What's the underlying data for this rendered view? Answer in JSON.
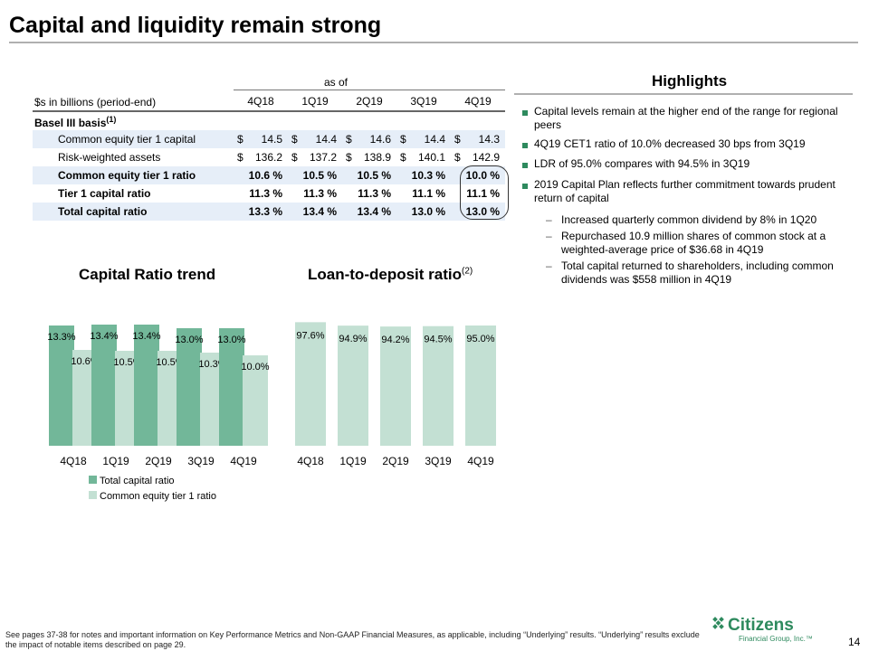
{
  "title": "Capital and liquidity remain strong",
  "table": {
    "as_of": "as of",
    "row_header": "$s in billions (period-end)",
    "columns": [
      "4Q18",
      "1Q19",
      "2Q19",
      "3Q19",
      "4Q19"
    ],
    "section": "Basel III basis",
    "section_sup": "(1)",
    "rows": [
      {
        "label": "Common equity tier 1 capital",
        "values": [
          "14.5",
          "14.4",
          "14.6",
          "14.4",
          "14.3"
        ],
        "dollar": true,
        "bold": false
      },
      {
        "label": "Risk-weighted assets",
        "values": [
          "136.2",
          "137.2",
          "138.9",
          "140.1",
          "142.9"
        ],
        "dollar": true,
        "bold": false
      },
      {
        "label": "Common equity tier 1 ratio",
        "values": [
          "10.6 %",
          "10.5 %",
          "10.5 %",
          "10.3 %",
          "10.0 %"
        ],
        "dollar": false,
        "bold": true
      },
      {
        "label": "Tier 1 capital ratio",
        "values": [
          "11.3 %",
          "11.3 %",
          "11.3 %",
          "11.1 %",
          "11.1 %"
        ],
        "dollar": false,
        "bold": true
      },
      {
        "label": "Total capital ratio",
        "values": [
          "13.3 %",
          "13.4 %",
          "13.4 %",
          "13.0 %",
          "13.0 %"
        ],
        "dollar": false,
        "bold": true
      }
    ],
    "dollar_sign": "$"
  },
  "highlights": {
    "title": "Highlights",
    "items": [
      "Capital levels remain at the higher end of the range for regional peers",
      "4Q19 CET1 ratio of 10.0% decreased 30 bps from 3Q19",
      "LDR of 95.0% compares with 94.5% in 3Q19",
      "2019 Capital Plan reflects further commitment towards prudent return of capital"
    ],
    "subitems": [
      "Increased quarterly common dividend by 8% in 1Q20",
      "Repurchased 10.9 million shares of common stock at a weighted-average price of $36.68 in 4Q19",
      "Total capital returned to shareholders, including common dividends was $558 million in 4Q19"
    ]
  },
  "chart_data": [
    {
      "type": "bar",
      "title": "Capital Ratio trend",
      "categories": [
        "4Q18",
        "1Q19",
        "2Q19",
        "3Q19",
        "4Q19"
      ],
      "series": [
        {
          "name": "Total capital ratio",
          "values": [
            13.3,
            13.4,
            13.4,
            13.0,
            13.0
          ],
          "labels": [
            "13.3%",
            "13.4%",
            "13.4%",
            "13.0%",
            "13.0%"
          ],
          "color": "#72b799"
        },
        {
          "name": "Common equity tier 1 ratio",
          "values": [
            10.6,
            10.5,
            10.5,
            10.3,
            10.0
          ],
          "labels": [
            "10.6%",
            "10.5%",
            "10.5%",
            "10.3%",
            "10.0%"
          ],
          "color": "#c3e0d3"
        }
      ],
      "ylim": [
        0,
        14
      ],
      "legend": "bottom-left"
    },
    {
      "type": "bar",
      "title": "Loan-to-deposit ratio",
      "title_sup": "(2)",
      "categories": [
        "4Q18",
        "1Q19",
        "2Q19",
        "3Q19",
        "4Q19"
      ],
      "series": [
        {
          "values": [
            97.6,
            94.9,
            94.2,
            94.5,
            95.0
          ],
          "labels": [
            "97.6%",
            "94.9%",
            "94.2%",
            "94.5%",
            "95.0%"
          ],
          "color": "#c3e0d3"
        }
      ],
      "ylim": [
        0,
        100
      ]
    }
  ],
  "footnote": "See pages 37-38 for notes and important information on Key Performance Metrics and Non-GAAP Financial Measures, as applicable, including “Underlying” results. “Underlying” results exclude the impact of notable items described on page 29.",
  "logo": {
    "name": "Citizens",
    "subtitle": "Financial Group, Inc.™",
    "icon": "citizens-logo-icon",
    "color": "#2e8a5e"
  },
  "page_number": "14"
}
